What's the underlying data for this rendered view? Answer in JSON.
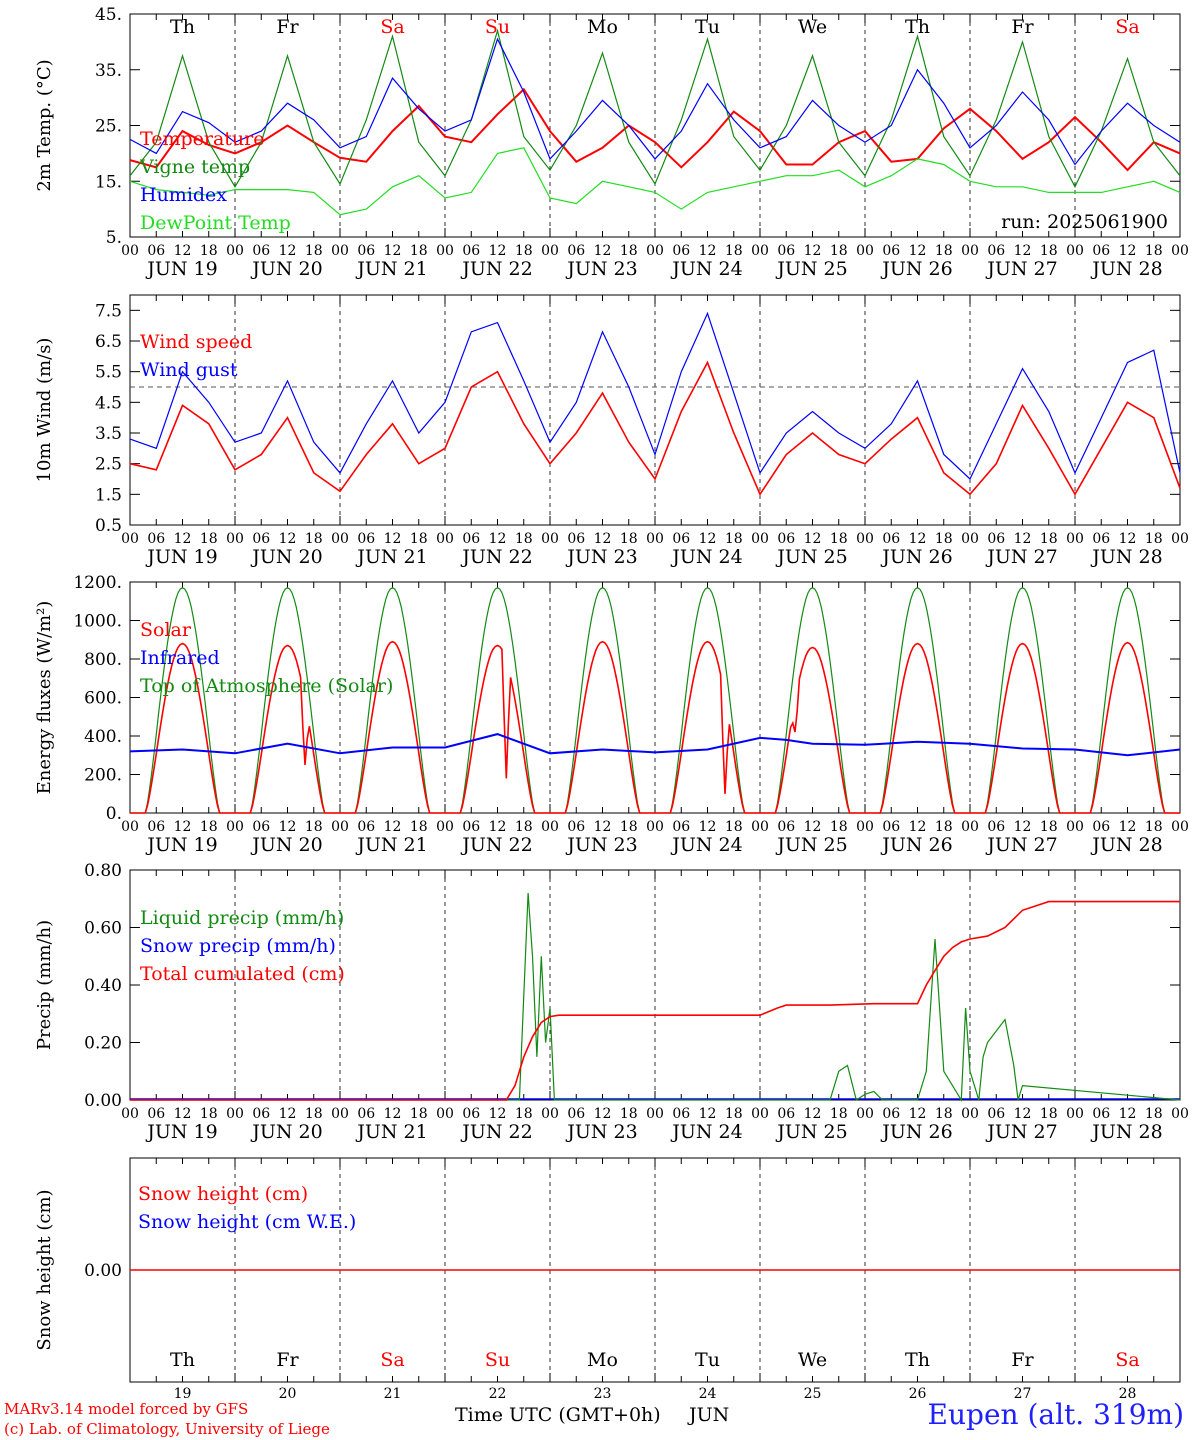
{
  "run_label": "run: 2025061900",
  "colors": {
    "temperature": "#ff0000",
    "vigne": "#138a13",
    "humidex": "#0000ff",
    "dewpoint": "#22dd22",
    "wind_speed": "#ff0000",
    "wind_gust": "#0000ff",
    "solar": "#ff0000",
    "infrared": "#0000ff",
    "toa": "#138a13",
    "liquid": "#138a13",
    "snow": "#0000ff",
    "cumul": "#ff0000",
    "weekday": "#000000",
    "weekend": "#ff0000"
  },
  "days": {
    "weekdays": [
      "Th",
      "Fr",
      "Sa",
      "Su",
      "Mo",
      "Tu",
      "We",
      "Th",
      "Fr",
      "Sa"
    ],
    "weekend_flags": [
      false,
      false,
      true,
      true,
      false,
      false,
      false,
      false,
      false,
      true
    ],
    "dates": [
      "JUN 19",
      "JUN 20",
      "JUN 21",
      "JUN 22",
      "JUN 23",
      "JUN 24",
      "JUN 25",
      "JUN 26",
      "JUN 27",
      "JUN 28"
    ],
    "daynums": [
      "19",
      "20",
      "21",
      "22",
      "23",
      "24",
      "25",
      "26",
      "27",
      "28"
    ],
    "hour_labels": [
      "00",
      "06",
      "12",
      "18"
    ],
    "final_hour_label": "00"
  },
  "footer": {
    "model": "MARv3.14 model forced by GFS",
    "credit": "(c) Lab. of Climatology, University of Liege",
    "xlabel": "Time UTC (GMT+0h)",
    "month": "JUN",
    "station": "Eupen (alt. 319m)"
  },
  "chart_data": [
    {
      "type": "line",
      "ylabel": "2m Temp. (°C)",
      "ylim": [
        5,
        45
      ],
      "ytick_labels": [
        "5.",
        "15.",
        "25.",
        "35.",
        "45."
      ],
      "x_unit": "hours since 2025-06-19 00 UTC",
      "series": [
        {
          "name": "Temperature",
          "key": "temperature",
          "x": [
            0,
            6,
            12,
            18,
            24,
            30,
            36,
            42,
            48,
            54,
            60,
            66,
            72,
            78,
            84,
            90,
            96,
            102,
            108,
            114,
            120,
            126,
            132,
            138,
            144,
            150,
            156,
            162,
            168,
            174,
            180,
            186,
            192,
            198,
            204,
            210,
            216,
            222,
            228,
            234,
            240
          ],
          "y": [
            18.8,
            17.5,
            24,
            21.5,
            20,
            22,
            25,
            22,
            19.2,
            18.5,
            24,
            28.5,
            23,
            22,
            27,
            31.5,
            24,
            18.5,
            21,
            25,
            22,
            17.5,
            22,
            27.5,
            24,
            18,
            18,
            22,
            24,
            18.5,
            19,
            24.5,
            28,
            24,
            19,
            22,
            26.5,
            22,
            17,
            22,
            20
          ]
        },
        {
          "name": "Vigne temp",
          "key": "vigne",
          "x": [
            0,
            6,
            12,
            18,
            24,
            30,
            36,
            42,
            48,
            54,
            60,
            66,
            72,
            78,
            84,
            90,
            96,
            102,
            108,
            114,
            120,
            126,
            132,
            138,
            144,
            150,
            156,
            162,
            168,
            174,
            180,
            186,
            192,
            198,
            204,
            210,
            216,
            222,
            228,
            234,
            240
          ],
          "y": [
            16,
            22,
            37.5,
            22,
            14,
            22,
            37.5,
            22,
            14.5,
            26,
            41,
            22,
            16,
            26,
            42,
            23,
            17,
            25,
            38,
            22,
            14.5,
            26,
            40.5,
            23,
            17,
            25,
            37.5,
            22,
            16,
            26,
            41,
            23,
            16,
            26,
            40,
            23,
            14,
            24,
            37,
            22,
            16
          ]
        },
        {
          "name": "Humidex",
          "key": "humidex",
          "x": [
            0,
            6,
            12,
            18,
            24,
            30,
            36,
            42,
            48,
            54,
            60,
            66,
            72,
            78,
            84,
            90,
            96,
            102,
            108,
            114,
            120,
            126,
            132,
            138,
            144,
            150,
            156,
            162,
            168,
            174,
            180,
            186,
            192,
            198,
            204,
            210,
            216,
            222,
            228,
            234,
            240
          ],
          "y": [
            22.5,
            20,
            27.5,
            25.5,
            22,
            24,
            29,
            26,
            21,
            23,
            33.5,
            28,
            24,
            26,
            40.5,
            31,
            19,
            24,
            29.5,
            25,
            19,
            24,
            32.5,
            26,
            21,
            23,
            29.5,
            25,
            22,
            25,
            35,
            29,
            21,
            25,
            31,
            26,
            18,
            24,
            29,
            25,
            22
          ]
        },
        {
          "name": "DewPoint Temp",
          "key": "dewpoint",
          "x": [
            0,
            6,
            12,
            18,
            24,
            30,
            36,
            42,
            48,
            54,
            60,
            66,
            72,
            78,
            84,
            90,
            96,
            102,
            108,
            114,
            120,
            126,
            132,
            138,
            144,
            150,
            156,
            162,
            168,
            174,
            180,
            186,
            192,
            198,
            204,
            210,
            216,
            222,
            228,
            234,
            240
          ],
          "y": [
            15,
            13.5,
            13,
            12.5,
            13.5,
            13.5,
            13.5,
            13,
            9,
            10,
            14,
            16,
            12,
            13,
            20,
            21,
            12,
            11,
            15,
            14,
            13,
            10,
            13,
            14,
            15,
            16,
            16,
            17,
            14,
            16,
            19,
            18,
            15,
            14,
            14,
            13,
            13,
            13,
            14,
            15,
            13
          ]
        }
      ]
    },
    {
      "type": "line",
      "ylabel": "10m Wind (m/s)",
      "ylim": [
        0.5,
        8
      ],
      "ytick_labels": [
        "0.5",
        "1.5",
        "2.5",
        "3.5",
        "4.5",
        "5.5",
        "6.5",
        "7.5"
      ],
      "ref_line_y": 5,
      "x_unit": "hours since 2025-06-19 00 UTC",
      "series": [
        {
          "name": "Wind speed",
          "key": "wind_speed",
          "x": [
            0,
            6,
            12,
            18,
            24,
            30,
            36,
            42,
            48,
            54,
            60,
            66,
            72,
            78,
            84,
            90,
            96,
            102,
            108,
            114,
            120,
            126,
            132,
            138,
            144,
            150,
            156,
            162,
            168,
            174,
            180,
            186,
            192,
            198,
            204,
            210,
            216,
            222,
            228,
            234,
            240
          ],
          "y": [
            2.5,
            2.3,
            4.4,
            3.8,
            2.3,
            2.8,
            4,
            2.2,
            1.6,
            2.8,
            3.8,
            2.5,
            3,
            5,
            5.5,
            3.8,
            2.5,
            3.5,
            4.8,
            3.2,
            2,
            4.2,
            5.8,
            3.5,
            1.5,
            2.8,
            3.5,
            2.8,
            2.5,
            3.3,
            4,
            2.2,
            1.5,
            2.5,
            4.4,
            3,
            1.5,
            3,
            4.5,
            4,
            1.7
          ]
        },
        {
          "name": "Wind gust",
          "key": "wind_gust",
          "x": [
            0,
            6,
            12,
            18,
            24,
            30,
            36,
            42,
            48,
            54,
            60,
            66,
            72,
            78,
            84,
            90,
            96,
            102,
            108,
            114,
            120,
            126,
            132,
            138,
            144,
            150,
            156,
            162,
            168,
            174,
            180,
            186,
            192,
            198,
            204,
            210,
            216,
            222,
            228,
            234,
            240
          ],
          "y": [
            3.3,
            3,
            5.5,
            4.5,
            3.2,
            3.5,
            5.2,
            3.2,
            2.2,
            3.8,
            5.2,
            3.5,
            4.5,
            6.8,
            7.1,
            5.2,
            3.2,
            4.5,
            6.8,
            5,
            2.8,
            5.5,
            7.4,
            4.8,
            2.2,
            3.5,
            4.2,
            3.5,
            3,
            3.8,
            5.2,
            2.8,
            2,
            3.8,
            5.6,
            4.2,
            2.2,
            4,
            5.8,
            6.2,
            2.2
          ]
        }
      ]
    },
    {
      "type": "line",
      "ylabel": "Energy fluxes (W/m²)",
      "ylim": [
        0,
        1200
      ],
      "ytick_labels": [
        "0.",
        "200.",
        "400.",
        "600.",
        "800.",
        "1000.",
        "1200."
      ],
      "x_unit": "hours since 2025-06-19 00 UTC",
      "diurnal": {
        "sunrise_hour": 3.5,
        "sunset_hour": 20.5,
        "peak_hour": 12
      },
      "series": [
        {
          "name": "Solar",
          "key": "solar",
          "day_peaks": [
            880,
            870,
            890,
            870,
            890,
            890,
            860,
            880,
            880,
            885
          ],
          "day_disturbances": [
            {
              "day": 1,
              "hour": 16,
              "value": 250
            },
            {
              "day": 3,
              "hour": 14,
              "value": 180
            },
            {
              "day": 5,
              "hour": 16,
              "value": 100
            },
            {
              "day": 6,
              "hour": 8,
              "value": 420
            }
          ]
        },
        {
          "name": "Infrared",
          "key": "infrared",
          "x": [
            0,
            12,
            24,
            36,
            48,
            60,
            72,
            84,
            96,
            108,
            120,
            132,
            144,
            150,
            156,
            168,
            180,
            192,
            204,
            216,
            228,
            240
          ],
          "y": [
            320,
            330,
            310,
            360,
            310,
            340,
            340,
            410,
            310,
            330,
            315,
            330,
            390,
            380,
            360,
            355,
            370,
            360,
            335,
            330,
            300,
            330
          ]
        },
        {
          "name": "Top of Atmosphere (Solar)",
          "key": "toa",
          "day_peaks": [
            1170,
            1170,
            1170,
            1170,
            1170,
            1170,
            1170,
            1170,
            1170,
            1170
          ]
        }
      ]
    },
    {
      "type": "line",
      "ylabel": "Precip (mm/h)",
      "ylim": [
        0,
        0.8
      ],
      "ytick_labels": [
        "0.00",
        "0.20",
        "0.40",
        "0.60",
        "0.80"
      ],
      "x_unit": "hours since 2025-06-19 00 UTC",
      "series": [
        {
          "name": "Liquid precip (mm/h)",
          "key": "liquid",
          "x": [
            0,
            87,
            89,
            91,
            92,
            93,
            94,
            95,
            96,
            97,
            98,
            99,
            100,
            160,
            162,
            164,
            166,
            168,
            170,
            172,
            174,
            176,
            178,
            180,
            182,
            184,
            186,
            190,
            191,
            192,
            193,
            194,
            195,
            196,
            200,
            202,
            203,
            204,
            240
          ],
          "y": [
            0,
            0,
            0,
            0.72,
            0.5,
            0.15,
            0.5,
            0.2,
            0.32,
            0,
            0,
            0,
            0,
            0,
            0.1,
            0.12,
            0,
            0.02,
            0.03,
            0,
            0,
            0,
            0,
            0,
            0.1,
            0.56,
            0.1,
            0,
            0.32,
            0.1,
            0.05,
            0,
            0.15,
            0.2,
            0.28,
            0.12,
            0,
            0.05,
            0
          ]
        },
        {
          "name": "Snow precip (mm/h)",
          "key": "snow",
          "x": [
            0,
            240
          ],
          "y": [
            0,
            0
          ]
        },
        {
          "name": "Total cumulated (cm)",
          "key": "cumul",
          "x": [
            0,
            86,
            88,
            90,
            92,
            94,
            96,
            98,
            100,
            124,
            144,
            148,
            150,
            160,
            170,
            174,
            180,
            182,
            184,
            186,
            188,
            190,
            192,
            196,
            200,
            204,
            210,
            240
          ],
          "y": [
            0,
            0,
            0.05,
            0.15,
            0.22,
            0.27,
            0.29,
            0.295,
            0.295,
            0.295,
            0.295,
            0.32,
            0.33,
            0.33,
            0.335,
            0.335,
            0.335,
            0.4,
            0.45,
            0.5,
            0.53,
            0.55,
            0.56,
            0.57,
            0.6,
            0.66,
            0.69,
            0.69
          ]
        }
      ]
    },
    {
      "type": "line",
      "ylabel": "Snow height (cm)",
      "ytick_labels": [
        "0.00"
      ],
      "x_unit": "hours since 2025-06-19 00 UTC",
      "series": [
        {
          "name": "Snow height (cm)",
          "key": "snow_cm",
          "x": [
            0,
            240
          ],
          "y": [
            0,
            0
          ]
        },
        {
          "name": "Snow height (cm W.E.)",
          "key": "snow_we",
          "x": [
            0,
            240
          ],
          "y": [
            0,
            0
          ]
        }
      ]
    }
  ]
}
